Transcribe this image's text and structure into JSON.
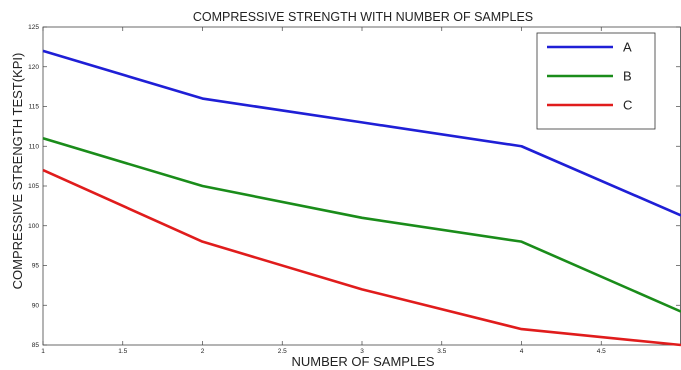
{
  "chart_data": {
    "type": "line",
    "title": "COMPRESSIVE STRENGTH WITH NUMBER OF SAMPLES",
    "xlabel": "NUMBER OF SAMPLES",
    "ylabel": "COMPRESSIVE STRENGTH TEST(KPI)",
    "xlim": [
      1,
      5
    ],
    "ylim": [
      85,
      125
    ],
    "xticks": [
      1,
      1.5,
      2,
      2.5,
      3,
      3.5,
      4,
      4.5
    ],
    "xtick_labels": [
      "1",
      "1.5",
      "2",
      "2.5",
      "3",
      "3.5",
      "4",
      "4.5"
    ],
    "yticks": [
      85,
      90,
      95,
      100,
      105,
      110,
      115,
      120,
      125
    ],
    "ytick_labels": [
      "85",
      "90",
      "95",
      "100",
      "105",
      "110",
      "115",
      "120",
      "125"
    ],
    "grid": false,
    "legend_position": "top-right",
    "x": [
      1,
      2,
      3,
      4,
      5
    ],
    "series": [
      {
        "name": "A",
        "color": "#1f1fd6",
        "values": [
          122,
          116,
          113,
          110,
          101.3
        ]
      },
      {
        "name": "B",
        "color": "#1a8c1a",
        "values": [
          111,
          105,
          101,
          98,
          89.2
        ]
      },
      {
        "name": "C",
        "color": "#e01c1c",
        "values": [
          107,
          98,
          92,
          87,
          85
        ]
      }
    ]
  }
}
